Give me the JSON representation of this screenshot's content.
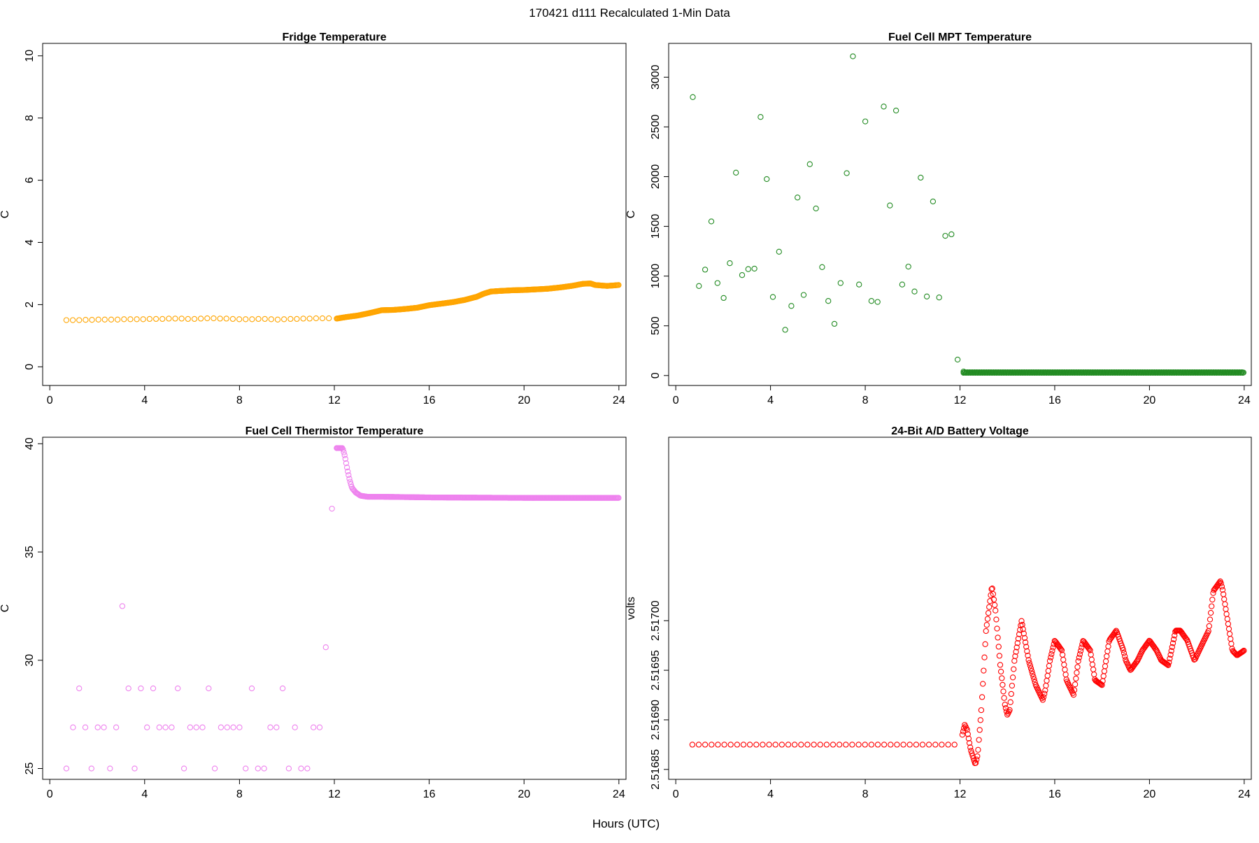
{
  "page": {
    "title": "170421   d111   Recalculated 1-Min Data",
    "xlabel": "Hours (UTC)"
  },
  "chart_data": [
    {
      "type": "scatter",
      "title": "Fridge Temperature",
      "xlabel": "",
      "ylabel": "C",
      "xlim": [
        -0.3,
        24.3
      ],
      "ylim": [
        -0.6,
        10.4
      ],
      "xticks": [
        0,
        4,
        8,
        12,
        16,
        20,
        24
      ],
      "yticks": [
        0,
        2,
        4,
        6,
        8,
        10
      ],
      "color": "#FFA500",
      "series": [
        {
          "name": "sparse",
          "x": [
            0.7,
            0.97,
            1.24,
            1.51,
            1.78,
            2.05,
            2.32,
            2.59,
            2.86,
            3.13,
            3.4,
            3.67,
            3.94,
            4.21,
            4.48,
            4.75,
            5.02,
            5.29,
            5.56,
            5.83,
            6.1,
            6.37,
            6.64,
            6.91,
            7.18,
            7.45,
            7.72,
            7.99,
            8.26,
            8.53,
            8.8,
            9.07,
            9.34,
            9.61,
            9.88,
            10.15,
            10.42,
            10.69,
            10.96,
            11.23,
            11.5,
            11.77
          ],
          "y": [
            1.5,
            1.5,
            1.5,
            1.51,
            1.51,
            1.52,
            1.52,
            1.52,
            1.52,
            1.53,
            1.53,
            1.53,
            1.53,
            1.54,
            1.54,
            1.54,
            1.55,
            1.55,
            1.55,
            1.54,
            1.54,
            1.55,
            1.56,
            1.56,
            1.55,
            1.55,
            1.54,
            1.53,
            1.53,
            1.53,
            1.54,
            1.54,
            1.53,
            1.52,
            1.53,
            1.54,
            1.54,
            1.55,
            1.55,
            1.56,
            1.56,
            1.56
          ]
        },
        {
          "name": "dense",
          "x_start": 12.1,
          "x_step": 0.0333,
          "knots_x": [
            12.1,
            12.5,
            13.0,
            13.5,
            14.0,
            14.5,
            15.0,
            15.5,
            16.0,
            16.5,
            17.0,
            17.5,
            18.0,
            18.3,
            18.6,
            19.0,
            19.5,
            20.0,
            20.5,
            21.0,
            21.5,
            22.0,
            22.5,
            22.8,
            23.0,
            23.5,
            24.0
          ],
          "knots_y": [
            1.55,
            1.6,
            1.65,
            1.73,
            1.82,
            1.83,
            1.86,
            1.9,
            1.98,
            2.03,
            2.08,
            2.15,
            2.25,
            2.35,
            2.42,
            2.44,
            2.46,
            2.47,
            2.49,
            2.51,
            2.55,
            2.6,
            2.67,
            2.68,
            2.63,
            2.6,
            2.63
          ]
        }
      ]
    },
    {
      "type": "scatter",
      "title": "Fuel Cell MPT Temperature",
      "xlabel": "",
      "ylabel": "C",
      "xlim": [
        -0.3,
        24.3
      ],
      "ylim": [
        -100,
        3340
      ],
      "xticks": [
        0,
        4,
        8,
        12,
        16,
        20,
        24
      ],
      "yticks": [
        0,
        500,
        1000,
        1500,
        2000,
        2500,
        3000
      ],
      "color": "#228B22",
      "series": [
        {
          "name": "sparse",
          "x": [
            0.72,
            0.98,
            1.24,
            1.5,
            1.76,
            2.02,
            2.28,
            2.54,
            2.8,
            3.06,
            3.32,
            3.58,
            3.84,
            4.1,
            4.36,
            4.62,
            4.88,
            5.14,
            5.4,
            5.66,
            5.92,
            6.18,
            6.44,
            6.7,
            6.96,
            7.22,
            7.48,
            7.74,
            8.0,
            8.26,
            8.52,
            8.78,
            9.04,
            9.3,
            9.56,
            9.82,
            10.08,
            10.34,
            10.6,
            10.86,
            11.12,
            11.38,
            11.64,
            11.9,
            12.15
          ],
          "y": [
            2800,
            900,
            1065,
            1550,
            930,
            780,
            1130,
            2040,
            1010,
            1070,
            1075,
            2600,
            1975,
            790,
            1245,
            460,
            700,
            1790,
            810,
            2125,
            1680,
            1090,
            750,
            520,
            930,
            2035,
            3210,
            915,
            2555,
            750,
            740,
            2705,
            1710,
            2665,
            915,
            1095,
            845,
            1990,
            795,
            1750,
            785,
            1405,
            1420,
            160,
            40
          ]
        },
        {
          "name": "dense",
          "x_start": 12.15,
          "x_end": 24.0,
          "x_step": 0.0333,
          "y_value": 30,
          "y_jitter": 3
        }
      ]
    },
    {
      "type": "scatter",
      "title": "Fuel Cell Thermistor Temperature",
      "xlabel": "",
      "ylabel": "C",
      "xlim": [
        -0.3,
        24.3
      ],
      "ylim": [
        24.5,
        40.3
      ],
      "xticks": [
        0,
        4,
        8,
        12,
        16,
        20,
        24
      ],
      "yticks": [
        25,
        30,
        35,
        40
      ],
      "color": "#EE82EE",
      "series": [
        {
          "name": "sparse",
          "x": [
            0.7,
            0.98,
            1.24,
            1.5,
            1.76,
            2.02,
            2.28,
            2.54,
            2.8,
            3.06,
            3.32,
            3.58,
            3.84,
            4.1,
            4.36,
            4.62,
            4.88,
            5.14,
            5.4,
            5.66,
            5.92,
            6.18,
            6.44,
            6.7,
            6.96,
            7.22,
            7.48,
            7.74,
            8.0,
            8.26,
            8.52,
            8.78,
            9.04,
            9.3,
            9.56,
            9.82,
            10.08,
            10.34,
            10.6,
            10.86,
            11.12,
            11.38,
            11.64,
            11.9,
            12.1
          ],
          "y": [
            25.0,
            26.9,
            28.7,
            26.9,
            25.0,
            26.9,
            26.9,
            25.0,
            26.9,
            32.5,
            28.7,
            25.0,
            28.7,
            26.9,
            28.7,
            26.9,
            26.9,
            26.9,
            28.7,
            25.0,
            26.9,
            26.9,
            26.9,
            28.7,
            25.0,
            26.9,
            26.9,
            26.9,
            26.9,
            25.0,
            28.7,
            25.0,
            25.0,
            26.9,
            26.9,
            28.7,
            25.0,
            26.9,
            25.0,
            25.0,
            26.9,
            26.9,
            30.6,
            37.0,
            39.8
          ]
        },
        {
          "name": "dense",
          "x_start": 12.1,
          "x_step": 0.0333,
          "knots_x": [
            12.1,
            12.35,
            12.45,
            12.55,
            12.65,
            12.75,
            12.9,
            13.1,
            13.4,
            14.0,
            16.0,
            20.0,
            24.0
          ],
          "knots_y": [
            39.8,
            39.8,
            39.4,
            38.8,
            38.3,
            37.95,
            37.75,
            37.6,
            37.55,
            37.55,
            37.52,
            37.5,
            37.5
          ]
        }
      ]
    },
    {
      "type": "scatter",
      "title": "24-Bit A/D Battery Voltage",
      "xlabel": "",
      "ylabel": "volts",
      "xlim": [
        -0.3,
        24.3
      ],
      "ylim": [
        2.51684,
        2.517185
      ],
      "xticks": [
        0,
        4,
        8,
        12,
        16,
        20,
        24
      ],
      "yticks": [
        2.51685,
        2.5169,
        2.51695,
        2.517
      ],
      "ytick_labels": [
        "2.51685",
        "2.51690",
        "2.51695",
        "2.51700"
      ],
      "color": "#FF0000",
      "series": [
        {
          "name": "sparse",
          "x_start": 0.7,
          "x_end": 11.95,
          "x_step": 0.27,
          "y_value": 2.516875
        },
        {
          "name": "dense",
          "x_start": 12.1,
          "x_step": 0.0333,
          "knots_x": [
            12.1,
            12.2,
            12.3,
            12.45,
            12.65,
            12.75,
            12.9,
            13.1,
            13.35,
            13.5,
            13.7,
            13.9,
            14.0,
            14.1,
            14.3,
            14.6,
            14.9,
            15.2,
            15.5,
            15.6,
            15.8,
            16.0,
            16.3,
            16.5,
            16.8,
            17.0,
            17.2,
            17.5,
            17.7,
            18.0,
            18.3,
            18.6,
            18.9,
            19.0,
            19.2,
            19.5,
            19.7,
            20.0,
            20.3,
            20.5,
            20.8,
            21.1,
            21.3,
            21.6,
            21.9,
            22.2,
            22.5,
            22.7,
            23.0,
            23.1,
            23.3,
            23.5,
            23.7,
            24.0
          ],
          "knots_y": [
            2.516885,
            2.516895,
            2.51689,
            2.51687,
            2.516855,
            2.516865,
            2.51691,
            2.51699,
            2.517035,
            2.51701,
            2.516955,
            2.516915,
            2.516905,
            2.51691,
            2.51696,
            2.517,
            2.51696,
            2.516935,
            2.51692,
            2.51693,
            2.51696,
            2.51698,
            2.51697,
            2.51694,
            2.516925,
            2.51696,
            2.51698,
            2.51697,
            2.51694,
            2.516935,
            2.51698,
            2.51699,
            2.51697,
            2.51696,
            2.51695,
            2.51696,
            2.51697,
            2.51698,
            2.51697,
            2.51696,
            2.516955,
            2.51699,
            2.51699,
            2.51698,
            2.51696,
            2.516975,
            2.51699,
            2.51703,
            2.51704,
            2.51703,
            2.517,
            2.51697,
            2.516965,
            2.51697
          ]
        }
      ]
    }
  ]
}
